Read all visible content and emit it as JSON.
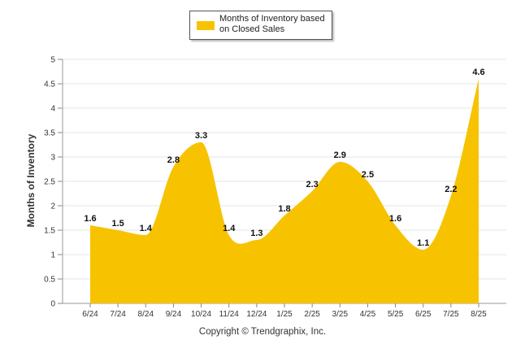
{
  "chart_data": {
    "type": "area",
    "categories": [
      "6/24",
      "7/24",
      "8/24",
      "9/24",
      "10/24",
      "11/24",
      "12/24",
      "1/25",
      "2/25",
      "3/25",
      "4/25",
      "5/25",
      "6/25",
      "7/25",
      "8/25"
    ],
    "series": [
      {
        "name": "Months of Inventory based on Closed Sales",
        "values": [
          1.6,
          1.5,
          1.4,
          2.8,
          3.3,
          1.4,
          1.3,
          1.8,
          2.3,
          2.9,
          2.5,
          1.6,
          1.1,
          2.2,
          4.6
        ]
      }
    ],
    "data_labels": [
      "1.6",
      "1.5",
      "1.4",
      "2.8",
      "3.3",
      "1.4",
      "1.3",
      "1.8",
      "2.3",
      "2.9",
      "2.5",
      "1.6",
      "1.1",
      "2.2",
      "4.6"
    ],
    "y_ticks": [
      "0",
      "0.5",
      "1",
      "1.5",
      "2",
      "2.5",
      "3",
      "3.5",
      "4",
      "4.5",
      "5"
    ],
    "ylim": [
      0,
      5
    ],
    "ylabel": "Months of Inventory",
    "xlabel": "",
    "title": "",
    "grid": true,
    "legend_position": "top-center",
    "series_color": "#F7C300"
  },
  "legend": {
    "label": "Months of Inventory based on Closed Sales",
    "color": "#F7C300"
  },
  "footer": {
    "copyright": "Copyright © Trendgraphix, Inc."
  }
}
